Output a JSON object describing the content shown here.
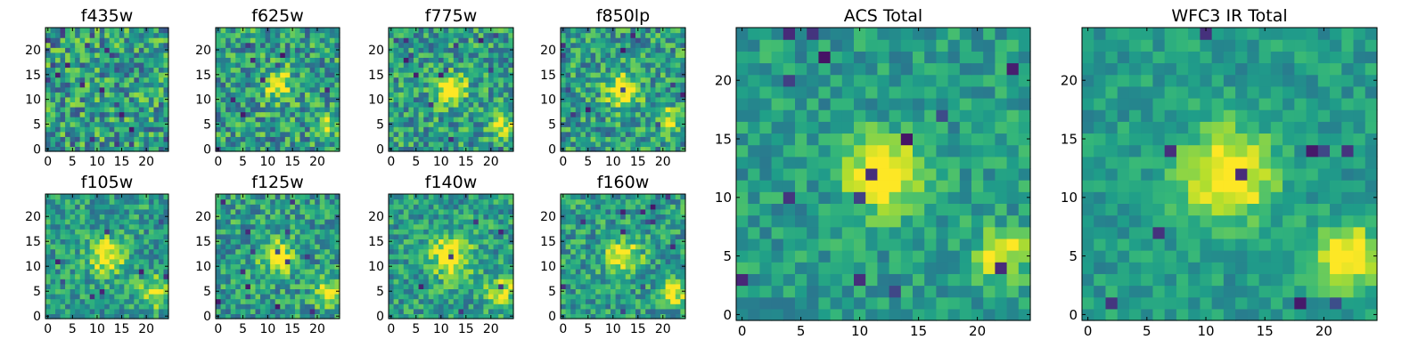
{
  "chart_data": [
    {
      "type": "heatmap",
      "title": "f435w",
      "colormap": "viridis",
      "grid_size": 25,
      "xticks": [
        0,
        5,
        10,
        15,
        20
      ],
      "yticks": [
        0,
        5,
        10,
        15,
        20
      ],
      "xlim": [
        -0.5,
        24.5
      ],
      "ylim": [
        -0.5,
        24.5
      ],
      "sources": [],
      "noise": 0.3,
      "dark_pixels": 22,
      "seed": 11
    },
    {
      "type": "heatmap",
      "title": "f625w",
      "colormap": "viridis",
      "grid_size": 25,
      "xticks": [
        0,
        5,
        10,
        15,
        20
      ],
      "yticks": [
        0,
        5,
        10,
        15,
        20
      ],
      "xlim": [
        -0.5,
        24.5
      ],
      "ylim": [
        -0.5,
        24.5
      ],
      "sources": [
        {
          "x": 12,
          "y": 13,
          "sigma": 2.2,
          "amp": 0.45
        },
        {
          "x": 22,
          "y": 5,
          "sigma": 1.6,
          "amp": 0.35
        }
      ],
      "noise": 0.28,
      "dark_pixels": 10,
      "seed": 23
    },
    {
      "type": "heatmap",
      "title": "f775w",
      "colormap": "viridis",
      "grid_size": 25,
      "xticks": [
        0,
        5,
        10,
        15,
        20
      ],
      "yticks": [
        0,
        5,
        10,
        15,
        20
      ],
      "xlim": [
        -0.5,
        24.5
      ],
      "ylim": [
        -0.5,
        24.5
      ],
      "sources": [
        {
          "x": 12,
          "y": 12,
          "sigma": 2.0,
          "amp": 0.65
        },
        {
          "x": 22,
          "y": 5,
          "sigma": 1.6,
          "amp": 0.45
        }
      ],
      "noise": 0.26,
      "dark_pixels": 14,
      "seed": 37
    },
    {
      "type": "heatmap",
      "title": "f850lp",
      "colormap": "viridis",
      "grid_size": 25,
      "xticks": [
        0,
        5,
        10,
        15,
        20
      ],
      "yticks": [
        0,
        5,
        10,
        15,
        20
      ],
      "xlim": [
        -0.5,
        24.5
      ],
      "ylim": [
        -0.5,
        24.5
      ],
      "sources": [
        {
          "x": 12,
          "y": 12,
          "sigma": 2.2,
          "amp": 0.6
        },
        {
          "x": 21,
          "y": 6,
          "sigma": 1.6,
          "amp": 0.4
        }
      ],
      "noise": 0.26,
      "dark_pixels": 12,
      "seed": 41
    },
    {
      "type": "heatmap",
      "title": "f105w",
      "colormap": "viridis",
      "grid_size": 25,
      "xticks": [
        0,
        5,
        10,
        15,
        20
      ],
      "yticks": [
        0,
        5,
        10,
        15,
        20
      ],
      "xlim": [
        -0.5,
        24.5
      ],
      "ylim": [
        -0.5,
        24.5
      ],
      "sources": [
        {
          "x": 12,
          "y": 12,
          "sigma": 2.5,
          "amp": 0.5
        },
        {
          "x": 22,
          "y": 5,
          "sigma": 2.0,
          "amp": 0.45
        }
      ],
      "noise": 0.22,
      "dark_pixels": 8,
      "seed": 53
    },
    {
      "type": "heatmap",
      "title": "f125w",
      "colormap": "viridis",
      "grid_size": 25,
      "xticks": [
        0,
        5,
        10,
        15,
        20
      ],
      "yticks": [
        0,
        5,
        10,
        15,
        20
      ],
      "xlim": [
        -0.5,
        24.5
      ],
      "ylim": [
        -0.5,
        24.5
      ],
      "sources": [
        {
          "x": 12,
          "y": 12,
          "sigma": 2.3,
          "amp": 0.5
        },
        {
          "x": 22,
          "y": 5,
          "sigma": 1.8,
          "amp": 0.5
        }
      ],
      "noise": 0.24,
      "dark_pixels": 14,
      "seed": 67
    },
    {
      "type": "heatmap",
      "title": "f140w",
      "colormap": "viridis",
      "grid_size": 25,
      "xticks": [
        0,
        5,
        10,
        15,
        20
      ],
      "yticks": [
        0,
        5,
        10,
        15,
        20
      ],
      "xlim": [
        -0.5,
        24.5
      ],
      "ylim": [
        -0.5,
        24.5
      ],
      "sources": [
        {
          "x": 12,
          "y": 12,
          "sigma": 3.0,
          "amp": 0.5
        },
        {
          "x": 22,
          "y": 5,
          "sigma": 2.0,
          "amp": 0.45
        }
      ],
      "noise": 0.22,
      "dark_pixels": 6,
      "seed": 71
    },
    {
      "type": "heatmap",
      "title": "f160w",
      "colormap": "viridis",
      "grid_size": 25,
      "xticks": [
        0,
        5,
        10,
        15,
        20
      ],
      "yticks": [
        0,
        5,
        10,
        15,
        20
      ],
      "xlim": [
        -0.5,
        24.5
      ],
      "ylim": [
        -0.5,
        24.5
      ],
      "sources": [
        {
          "x": 12,
          "y": 12,
          "sigma": 2.3,
          "amp": 0.55
        },
        {
          "x": 22,
          "y": 5,
          "sigma": 1.8,
          "amp": 0.55
        }
      ],
      "noise": 0.23,
      "dark_pixels": 12,
      "seed": 83
    },
    {
      "type": "heatmap",
      "title": "ACS Total",
      "colormap": "viridis",
      "grid_size": 25,
      "xticks": [
        0,
        5,
        10,
        15,
        20
      ],
      "yticks": [
        0,
        5,
        10,
        15,
        20
      ],
      "xlim": [
        -0.5,
        24.5
      ],
      "ylim": [
        -0.5,
        24.5
      ],
      "sources": [
        {
          "x": 12,
          "y": 12,
          "sigma": 2.1,
          "amp": 0.65
        },
        {
          "x": 22,
          "y": 5,
          "sigma": 1.5,
          "amp": 0.5
        }
      ],
      "noise": 0.16,
      "dark_pixels": 14,
      "seed": 97
    },
    {
      "type": "heatmap",
      "title": "WFC3 IR Total",
      "colormap": "viridis",
      "grid_size": 25,
      "xticks": [
        0,
        5,
        10,
        15,
        20
      ],
      "yticks": [
        0,
        5,
        10,
        15,
        20
      ],
      "xlim": [
        -0.5,
        24.5
      ],
      "ylim": [
        -0.5,
        24.5
      ],
      "sources": [
        {
          "x": 12,
          "y": 12,
          "sigma": 2.6,
          "amp": 0.6
        },
        {
          "x": 22,
          "y": 5,
          "sigma": 1.8,
          "amp": 0.6
        }
      ],
      "noise": 0.13,
      "dark_pixels": 10,
      "seed": 101
    }
  ]
}
